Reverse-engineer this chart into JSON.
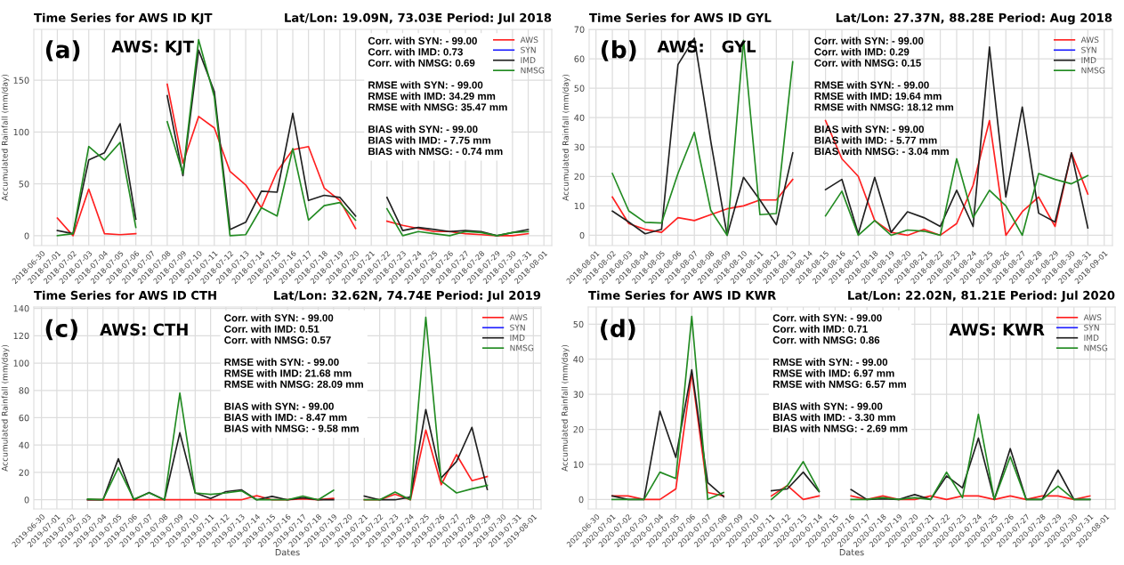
{
  "chart_data": [
    {
      "type": "line",
      "title": "Time Series for AWS ID KJT",
      "subtitle": "Lat/Lon: 19.09N, 73.03E Period: Jul 2018",
      "ylabel": "Accumulated Rainfall (mm/day)",
      "annotations": [
        "(a)",
        "AWS: KJT",
        "Corr. with SYN: - 99.00\nCorr. with IMD: 0.73\nCorr. with NMSG: 0.69\n\nRMSE with SYN: - 99.00\nRMSE with IMD: 34.29 mm\nRMSE with NMSG: 35.47 mm\n\nBIAS with SYN: - 99.00\nBIAS with IMD: - 7.75 mm\nBIAS with NMSG: - 0.74 mm"
      ],
      "x": [
        "2018-07-01",
        "2018-07-02",
        "2018-07-03",
        "2018-07-04",
        "2018-07-05",
        "2018-07-06",
        "2018-07-07",
        "2018-07-08",
        "2018-07-09",
        "2018-07-10",
        "2018-07-11",
        "2018-07-12",
        "2018-07-13",
        "2018-07-14",
        "2018-07-15",
        "2018-07-16",
        "2018-07-17",
        "2018-07-18",
        "2018-07-19",
        "2018-07-20",
        "2018-07-21",
        "2018-07-22",
        "2018-07-23",
        "2018-07-24",
        "2018-07-25",
        "2018-07-26",
        "2018-07-27",
        "2018-07-28",
        "2018-07-29",
        "2018-07-30",
        "2018-07-31"
      ],
      "series": [
        {
          "name": "AWS",
          "color": "#ff2020",
          "values": [
            17,
            0,
            45,
            2,
            1,
            2,
            null,
            146,
            70,
            115,
            104,
            62,
            49,
            27,
            62,
            83,
            86,
            46,
            34,
            7,
            null,
            14,
            10,
            7,
            4,
            4,
            2,
            1,
            0,
            0,
            2
          ]
        },
        {
          "name": "SYN",
          "color": "#2020ff",
          "values": [
            null,
            null,
            null,
            null,
            null,
            null,
            null,
            null,
            null,
            null,
            null,
            null,
            null,
            null,
            null,
            null,
            null,
            null,
            null,
            null,
            null,
            null,
            null,
            null,
            null,
            null,
            null,
            null,
            null,
            null,
            null
          ]
        },
        {
          "name": "IMD",
          "color": "#202020",
          "values": [
            5,
            2,
            73,
            80,
            108,
            16,
            null,
            135,
            58,
            179,
            139,
            6,
            13,
            43,
            42,
            118,
            34,
            39,
            37,
            19,
            null,
            37,
            5,
            8,
            6,
            4,
            5,
            4,
            0,
            3,
            6
          ]
        },
        {
          "name": "NMSG",
          "color": "#228b22",
          "values": [
            0,
            2,
            86,
            73,
            90,
            8,
            null,
            110,
            60,
            189,
            134,
            0,
            1,
            27,
            19,
            84,
            15,
            29,
            32,
            15,
            null,
            26,
            0,
            4,
            2,
            0,
            4,
            3,
            0,
            3,
            4
          ]
        }
      ],
      "xlim": [
        "2018-06-29T12:00",
        "2018-08-01T12:00"
      ],
      "xticks": [
        "2018-06-30",
        "2018-07-01",
        "2018-07-02",
        "2018-07-03",
        "2018-07-04",
        "2018-07-05",
        "2018-07-06",
        "2018-07-07",
        "2018-07-08",
        "2018-07-09",
        "2018-07-10",
        "2018-07-11",
        "2018-07-12",
        "2018-07-13",
        "2018-07-14",
        "2018-07-15",
        "2018-07-16",
        "2018-07-17",
        "2018-07-18",
        "2018-07-19",
        "2018-07-20",
        "2018-07-21",
        "2018-07-22",
        "2018-07-23",
        "2018-07-24",
        "2018-07-25",
        "2018-07-26",
        "2018-07-27",
        "2018-07-28",
        "2018-07-29",
        "2018-07-30",
        "2018-07-31",
        "2018-08-01"
      ],
      "ylim": [
        -9.5,
        199
      ],
      "yticks": [
        0,
        50,
        100,
        150
      ],
      "grid": true,
      "legend": "top right"
    },
    {
      "type": "line",
      "title": "Time Series for AWS ID GYL",
      "subtitle": "Lat/Lon: 27.37N, 88.28E Period: Aug 2018",
      "ylabel": "Accumulated Rainfall (mm/day)",
      "annotations": [
        "(b)",
        "AWS:   GYL",
        "Corr. with SYN: - 99.00\nCorr. with IMD: 0.29\nCorr. with NMSG: 0.15\n\nRMSE with SYN: - 99.00\nRMSE with IMD: 19.64 mm\nRMSE with NMSG: 18.12 mm\n\nBIAS with SYN: - 99.00\nBIAS with IMD: - 5.77 mm\nBIAS with NMSG: - 3.04 mm"
      ],
      "x": [
        "2018-08-02",
        "2018-08-03",
        "2018-08-04",
        "2018-08-05",
        "2018-08-06",
        "2018-08-07",
        "2018-08-08",
        "2018-08-09",
        "2018-08-10",
        "2018-08-11",
        "2018-08-12",
        "2018-08-13",
        "2018-08-14",
        "2018-08-15",
        "2018-08-16",
        "2018-08-17",
        "2018-08-18",
        "2018-08-19",
        "2018-08-20",
        "2018-08-21",
        "2018-08-22",
        "2018-08-23",
        "2018-08-24",
        "2018-08-25",
        "2018-08-26",
        "2018-08-27",
        "2018-08-28",
        "2018-08-29",
        "2018-08-30",
        "2018-08-31"
      ],
      "series": [
        {
          "name": "AWS",
          "color": "#ff2020",
          "values": [
            13,
            4,
            2,
            1,
            6,
            5,
            7,
            9,
            10,
            12,
            12,
            19,
            null,
            39,
            26,
            20,
            5,
            1,
            0,
            2,
            0,
            4,
            17,
            39,
            0,
            8,
            13,
            3,
            28,
            14
          ]
        },
        {
          "name": "SYN",
          "color": "#2020ff",
          "values": [
            null,
            null,
            null,
            null,
            null,
            null,
            null,
            null,
            null,
            null,
            null,
            null,
            null,
            null,
            null,
            null,
            null,
            null,
            null,
            null,
            null,
            null,
            null,
            null,
            null,
            null,
            null,
            null,
            null,
            null
          ]
        },
        {
          "name": "IMD",
          "color": "#202020",
          "values": [
            8.2,
            4.5,
            0.5,
            2,
            58,
            67,
            32,
            0,
            19.7,
            12,
            3.6,
            28,
            null,
            15.5,
            19,
            0.5,
            19.7,
            1,
            8,
            6,
            3,
            15.3,
            3,
            64,
            13,
            43.6,
            7.5,
            4.5,
            28,
            2.5
          ]
        },
        {
          "name": "NMSG",
          "color": "#228b22",
          "values": [
            21,
            8.3,
            4.4,
            4.2,
            21,
            35,
            8.5,
            0,
            66.3,
            7,
            7.4,
            59,
            null,
            6.6,
            15,
            0,
            5,
            0,
            1.8,
            1.4,
            0,
            26,
            6,
            15.3,
            10,
            0,
            21,
            19,
            17.5,
            20.3
          ]
        }
      ],
      "xlim": [
        "2018-07-31T14:00",
        "2018-09-01T12:00"
      ],
      "xticks": [
        "2018-08-01",
        "2018-08-02",
        "2018-08-03",
        "2018-08-04",
        "2018-08-05",
        "2018-08-06",
        "2018-08-07",
        "2018-08-08",
        "2018-08-09",
        "2018-08-10",
        "2018-08-11",
        "2018-08-12",
        "2018-08-13",
        "2018-08-14",
        "2018-08-15",
        "2018-08-16",
        "2018-08-17",
        "2018-08-18",
        "2018-08-19",
        "2018-08-20",
        "2018-08-21",
        "2018-08-22",
        "2018-08-23",
        "2018-08-24",
        "2018-08-25",
        "2018-08-26",
        "2018-08-27",
        "2018-08-28",
        "2018-08-29",
        "2018-08-30",
        "2018-08-31",
        "2018-09-01"
      ],
      "ylim": [
        -3.5,
        70
      ],
      "yticks": [
        0,
        10,
        20,
        30,
        40,
        50,
        60,
        70
      ],
      "grid": true,
      "legend": "top right"
    },
    {
      "type": "line",
      "title": "Time Series for AWS ID CTH",
      "subtitle": "Lat/Lon: 32.62N, 74.74E Period: Jul 2019",
      "xlabel": "Dates",
      "ylabel": "Accumulated Rainfall (mm/day)",
      "annotations": [
        "(c)",
        "AWS: CTH",
        "Corr. with SYN: - 99.00\nCorr. with IMD: 0.51\nCorr. with NMSG: 0.57\n\nRMSE with SYN: - 99.00\nRMSE with IMD: 21.68 mm\nRMSE with NMSG: 28.09 mm\n\nBIAS with SYN: - 99.00\nBIAS with IMD: - 8.47 mm\nBIAS with NMSG: - 9.58 mm"
      ],
      "x": [
        "2019-07-03",
        "2019-07-04",
        "2019-07-05",
        "2019-07-06",
        "2019-07-07",
        "2019-07-08",
        "2019-07-09",
        "2019-07-10",
        "2019-07-11",
        "2019-07-12",
        "2019-07-13",
        "2019-07-14",
        "2019-07-15",
        "2019-07-16",
        "2019-07-17",
        "2019-07-18",
        "2019-07-19",
        "2019-07-20",
        "2019-07-21",
        "2019-07-22",
        "2019-07-23",
        "2019-07-24",
        "2019-07-25",
        "2019-07-26",
        "2019-07-27",
        "2019-07-28",
        "2019-07-29"
      ],
      "series": [
        {
          "name": "AWS",
          "color": "#ff2020",
          "values": [
            0,
            0,
            0,
            0,
            0,
            0,
            0,
            0,
            0,
            0,
            0,
            3,
            0,
            0,
            0.7,
            0,
            1,
            null,
            0,
            0,
            4,
            0,
            51,
            11,
            33,
            14,
            17
          ]
        },
        {
          "name": "SYN",
          "color": "#2020ff",
          "values": [
            null,
            null,
            null,
            null,
            null,
            null,
            null,
            null,
            null,
            null,
            null,
            null,
            null,
            null,
            null,
            null,
            null,
            null,
            null,
            null,
            null,
            null,
            null,
            null,
            null,
            null,
            null
          ]
        },
        {
          "name": "IMD",
          "color": "#202020",
          "values": [
            0,
            0,
            30,
            0,
            5.4,
            0,
            49,
            5,
            1,
            6,
            7.3,
            0,
            2.5,
            0,
            1.5,
            0,
            0,
            null,
            2.7,
            0,
            0,
            2,
            66,
            16,
            28,
            53,
            7.6
          ]
        },
        {
          "name": "NMSG",
          "color": "#228b22",
          "values": [
            0.5,
            0,
            23.5,
            0.5,
            5,
            0,
            78,
            5,
            4,
            5,
            6.6,
            0,
            0,
            0,
            2.7,
            0,
            7,
            null,
            0,
            0,
            5.6,
            0,
            133.5,
            13.7,
            5,
            8,
            10.5
          ]
        }
      ],
      "xlim": [
        "2019-06-29T12:00",
        "2019-08-01T12:00"
      ],
      "xticks": [
        "2019-06-30",
        "2019-07-01",
        "2019-07-02",
        "2019-07-03",
        "2019-07-04",
        "2019-07-05",
        "2019-07-06",
        "2019-07-07",
        "2019-07-08",
        "2019-07-09",
        "2019-07-10",
        "2019-07-11",
        "2019-07-12",
        "2019-07-13",
        "2019-07-14",
        "2019-07-15",
        "2019-07-16",
        "2019-07-17",
        "2019-07-18",
        "2019-07-19",
        "2019-07-20",
        "2019-07-21",
        "2019-07-22",
        "2019-07-23",
        "2019-07-24",
        "2019-07-25",
        "2019-07-26",
        "2019-07-27",
        "2019-07-28",
        "2019-07-29",
        "2019-07-30",
        "2019-07-31",
        "2019-08-01"
      ],
      "ylim": [
        -6.7,
        141
      ],
      "yticks": [
        0,
        20,
        40,
        60,
        80,
        100,
        120,
        140
      ],
      "grid": true,
      "legend": "top right"
    },
    {
      "type": "line",
      "title": "Time Series for AWS ID KWR",
      "subtitle": "Lat/Lon: 22.02N, 81.21E Period: Jul 2020",
      "xlabel": "Dates",
      "ylabel": "Accumulated Rainfall (mm/day)",
      "annotations": [
        "(d)",
        "AWS: KWR",
        "Corr. with SYN: - 99.00\nCorr. with IMD: 0.71\nCorr. with NMSG: 0.86\n\nRMSE with SYN: - 99.00\nRMSE with IMD: 6.97 mm\nRMSE with NMSG: 6.57 mm\n\nBIAS with SYN: - 99.00\nBIAS with IMD: - 3.30 mm\nBIAS with NMSG: - 2.69 mm"
      ],
      "x": [
        "2020-07-01",
        "2020-07-02",
        "2020-07-03",
        "2020-07-04",
        "2020-07-05",
        "2020-07-06",
        "2020-07-07",
        "2020-07-08",
        "2020-07-09",
        "2020-07-10",
        "2020-07-11",
        "2020-07-12",
        "2020-07-13",
        "2020-07-14",
        "2020-07-15",
        "2020-07-16",
        "2020-07-17",
        "2020-07-18",
        "2020-07-19",
        "2020-07-20",
        "2020-07-21",
        "2020-07-22",
        "2020-07-23",
        "2020-07-24",
        "2020-07-25",
        "2020-07-26",
        "2020-07-27",
        "2020-07-28",
        "2020-07-29",
        "2020-07-30",
        "2020-07-31"
      ],
      "series": [
        {
          "name": "AWS",
          "color": "#ff2020",
          "values": [
            1,
            1,
            0,
            0,
            3,
            36,
            2,
            1,
            null,
            null,
            1,
            4,
            0,
            1,
            null,
            1,
            0,
            1,
            0,
            0,
            1,
            0,
            1,
            1,
            0,
            1,
            0,
            1,
            1,
            0,
            1
          ]
        },
        {
          "name": "SYN",
          "color": "#2020ff",
          "values": [
            null,
            null,
            null,
            null,
            null,
            null,
            null,
            null,
            null,
            null,
            null,
            null,
            null,
            null,
            null,
            null,
            null,
            null,
            null,
            null,
            null,
            null,
            null,
            null,
            null,
            null,
            null,
            null,
            null,
            null,
            null
          ]
        },
        {
          "name": "IMD",
          "color": "#202020",
          "values": [
            1,
            0,
            0,
            25.2,
            12,
            37,
            4.8,
            0.8,
            null,
            null,
            2.5,
            3,
            7.8,
            2.2,
            null,
            2.8,
            0,
            0.2,
            0,
            1.4,
            0,
            6.7,
            3.3,
            17.5,
            0,
            14.5,
            0,
            0,
            8.4,
            0,
            0
          ]
        },
        {
          "name": "NMSG",
          "color": "#228b22",
          "values": [
            0,
            0,
            0,
            7.8,
            6,
            52.2,
            0,
            2,
            null,
            null,
            0,
            3.9,
            10.8,
            2.4,
            null,
            0,
            0,
            0.5,
            0,
            0.5,
            0,
            7.8,
            0.5,
            24.3,
            0,
            12.2,
            0,
            0,
            3.8,
            0,
            0
          ]
        }
      ],
      "xlim": [
        "2020-06-29T12:00",
        "2020-08-01T14:00"
      ],
      "xticks": [
        "2020-06-30",
        "2020-07-01",
        "2020-07-02",
        "2020-07-03",
        "2020-07-04",
        "2020-07-05",
        "2020-07-06",
        "2020-07-07",
        "2020-07-08",
        "2020-07-09",
        "2020-07-10",
        "2020-07-11",
        "2020-07-12",
        "2020-07-13",
        "2020-07-14",
        "2020-07-15",
        "2020-07-16",
        "2020-07-17",
        "2020-07-18",
        "2020-07-19",
        "2020-07-20",
        "2020-07-21",
        "2020-07-22",
        "2020-07-23",
        "2020-07-24",
        "2020-07-25",
        "2020-07-26",
        "2020-07-27",
        "2020-07-28",
        "2020-07-29",
        "2020-07-30",
        "2020-07-31",
        "2020-08-01"
      ],
      "ylim": [
        -2.7,
        54.9
      ],
      "yticks": [
        0,
        10,
        20,
        30,
        40,
        50
      ],
      "grid": true,
      "legend": "top right"
    }
  ]
}
